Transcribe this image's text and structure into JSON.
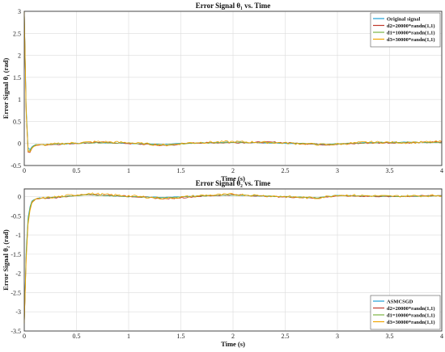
{
  "chart_data": [
    {
      "type": "line",
      "title": "Error Signal θ₁ vs. Time",
      "xlabel": "Time (s)",
      "ylabel": "Error Signal θ₁ (rad)",
      "xlim": [
        0,
        4
      ],
      "ylim": [
        -0.5,
        3.0
      ],
      "xticks": [
        0,
        0.5,
        1,
        1.5,
        2,
        2.5,
        3,
        3.5,
        4
      ],
      "yticks": [
        -0.5,
        0,
        0.5,
        1,
        1.5,
        2,
        2.5,
        3
      ],
      "grid": true,
      "legend_position": "top-right",
      "series": [
        {
          "name": "Original signal",
          "color": "#1f9fd4",
          "noise": 0.008,
          "x": [
            0,
            0.02,
            0.04,
            0.06,
            0.1,
            0.3,
            0.7,
            1.0,
            1.35,
            1.6,
            2.0,
            2.4,
            2.9,
            3.3,
            3.7,
            4.0
          ],
          "y": [
            3.0,
            0.6,
            -0.25,
            -0.1,
            -0.03,
            -0.02,
            0.02,
            0.0,
            -0.02,
            0.01,
            0.03,
            0.01,
            -0.02,
            0.02,
            0.03,
            0.02
          ]
        },
        {
          "name": "d2=20000*randn(1,1)",
          "color": "#c0392b",
          "noise": 0.015,
          "x": [
            0,
            0.02,
            0.04,
            0.06,
            0.1,
            0.3,
            0.7,
            1.0,
            1.35,
            1.6,
            2.0,
            2.4,
            2.9,
            3.3,
            3.7,
            4.0
          ],
          "y": [
            3.0,
            0.5,
            -0.35,
            -0.15,
            -0.04,
            -0.02,
            0.03,
            0.0,
            -0.05,
            0.01,
            0.02,
            0.03,
            -0.03,
            0.01,
            0.02,
            0.03
          ]
        },
        {
          "name": "d1=10000*randn(1,1)",
          "color": "#7cb342",
          "noise": 0.012,
          "x": [
            0,
            0.02,
            0.04,
            0.06,
            0.1,
            0.3,
            0.7,
            1.0,
            1.35,
            1.6,
            2.0,
            2.4,
            2.9,
            3.3,
            3.7,
            4.0
          ],
          "y": [
            3.0,
            0.55,
            -0.3,
            -0.12,
            -0.03,
            -0.01,
            0.02,
            0.01,
            -0.03,
            0.0,
            0.03,
            0.02,
            -0.02,
            0.02,
            0.03,
            0.02
          ]
        },
        {
          "name": "d3=30000*randn(1,1)",
          "color": "#f0a500",
          "noise": 0.025,
          "x": [
            0,
            0.02,
            0.04,
            0.06,
            0.1,
            0.3,
            0.7,
            1.0,
            1.35,
            1.6,
            2.0,
            2.4,
            2.9,
            3.3,
            3.7,
            4.0
          ],
          "y": [
            3.0,
            0.45,
            -0.32,
            -0.14,
            -0.05,
            -0.01,
            0.04,
            0.02,
            -0.04,
            0.02,
            0.04,
            0.02,
            -0.03,
            0.03,
            0.02,
            0.04
          ]
        }
      ]
    },
    {
      "type": "line",
      "title": "Error Signal θ₂ vs. Time",
      "xlabel": "Time (s)",
      "ylabel": "Error Signal θ₂ (rad)",
      "xlim": [
        0,
        4
      ],
      "ylim": [
        -3.5,
        0.2
      ],
      "xticks": [
        0,
        0.5,
        1,
        1.5,
        2,
        2.5,
        3,
        3.5,
        4
      ],
      "yticks": [
        -3.5,
        -3,
        -2.5,
        -2,
        -1.5,
        -1,
        -0.5,
        0
      ],
      "grid": true,
      "legend_position": "bottom-right",
      "series": [
        {
          "name": "ASMCSGD",
          "color": "#1f9fd4",
          "noise": 0.008,
          "x": [
            0,
            0.02,
            0.04,
            0.07,
            0.12,
            0.3,
            0.6,
            1.0,
            1.35,
            1.7,
            2.0,
            2.4,
            2.8,
            3.0,
            3.5,
            4.0
          ],
          "y": [
            -3.3,
            -1.2,
            -0.4,
            -0.12,
            -0.04,
            -0.02,
            0.05,
            0.0,
            -0.02,
            0.02,
            0.04,
            0.0,
            -0.03,
            0.03,
            0.0,
            0.02
          ]
        },
        {
          "name": "d2=20000*randn(1,1)",
          "color": "#c0392b",
          "noise": 0.015,
          "x": [
            0,
            0.02,
            0.04,
            0.07,
            0.12,
            0.3,
            0.6,
            1.0,
            1.35,
            1.7,
            2.0,
            2.4,
            2.8,
            3.0,
            3.5,
            4.0
          ],
          "y": [
            -3.3,
            -1.4,
            -0.5,
            -0.15,
            -0.05,
            -0.03,
            0.06,
            0.01,
            -0.06,
            0.01,
            0.05,
            0.0,
            -0.04,
            0.02,
            0.0,
            0.03
          ]
        },
        {
          "name": "d1=10000*randn(1,1)",
          "color": "#7cb342",
          "noise": 0.012,
          "x": [
            0,
            0.02,
            0.04,
            0.07,
            0.12,
            0.3,
            0.6,
            1.0,
            1.35,
            1.7,
            2.0,
            2.4,
            2.8,
            3.0,
            3.5,
            4.0
          ],
          "y": [
            -3.3,
            -1.3,
            -0.45,
            -0.13,
            -0.04,
            -0.02,
            0.05,
            0.0,
            -0.03,
            0.02,
            0.04,
            0.01,
            -0.03,
            0.03,
            0.01,
            0.02
          ]
        },
        {
          "name": "d3=30000*randn(1,1)",
          "color": "#f0a500",
          "noise": 0.03,
          "x": [
            0,
            0.02,
            0.04,
            0.07,
            0.12,
            0.3,
            0.6,
            1.0,
            1.35,
            1.7,
            2.0,
            2.4,
            2.8,
            3.0,
            3.5,
            4.0
          ],
          "y": [
            -3.3,
            -1.5,
            -0.55,
            -0.18,
            -0.06,
            -0.01,
            0.08,
            0.02,
            -0.05,
            0.03,
            0.06,
            0.01,
            -0.04,
            0.04,
            0.01,
            0.03
          ]
        }
      ]
    }
  ]
}
